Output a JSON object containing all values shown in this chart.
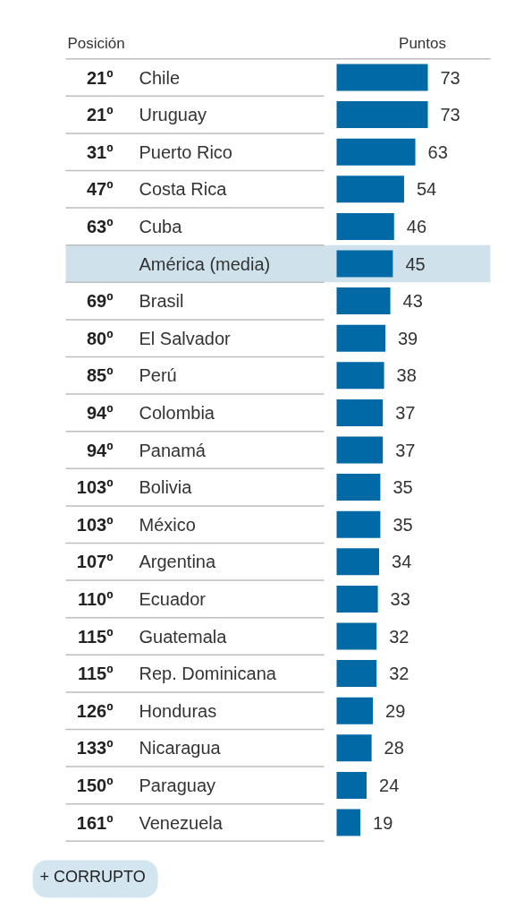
{
  "chart_data": {
    "type": "bar",
    "orientation": "horizontal",
    "xlabel": "Puntos",
    "ylabel": "Posición",
    "categories": [
      "Chile",
      "Uruguay",
      "Puerto Rico",
      "Costa Rica",
      "Cuba",
      "América (media)",
      "Brasil",
      "El Salvador",
      "Perú",
      "Colombia",
      "Panamá",
      "Bolivia",
      "México",
      "Argentina",
      "Ecuador",
      "Guatemala",
      "Rep. Dominicana",
      "Honduras",
      "Nicaragua",
      "Paraguay",
      "Venezuela"
    ],
    "y2_categories": [
      "21º",
      "21º",
      "31º",
      "47º",
      "63º",
      null,
      "69º",
      "80º",
      "85º",
      "94º",
      "94º",
      "103º",
      "103º",
      "107º",
      "110º",
      "115º",
      "115º",
      "126º",
      "133º",
      "150º",
      "161º"
    ],
    "values": [
      73,
      73,
      63,
      54,
      46,
      45,
      43,
      39,
      38,
      37,
      37,
      35,
      35,
      34,
      33,
      32,
      32,
      29,
      28,
      24,
      19
    ],
    "color": "#0069a6",
    "data_labels": true,
    "bands": [
      {
        "axis": "y",
        "from": "América (media)",
        "to": "América (media)",
        "color": "#cfe2ec"
      }
    ],
    "annotations": [
      "+ CORRUPTO"
    ]
  }
}
